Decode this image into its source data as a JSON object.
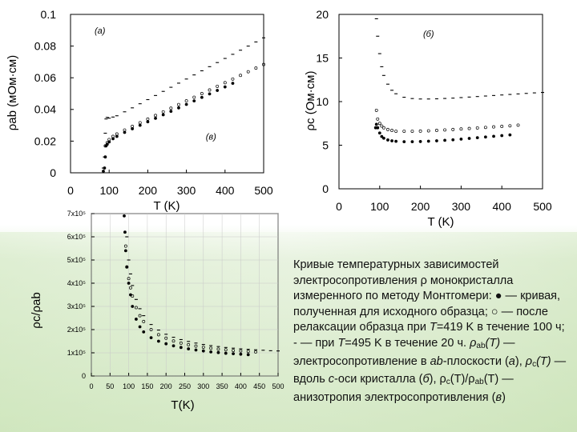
{
  "colors": {
    "background_top": "#ffffff",
    "background_bottom": "#cfe6bd",
    "background_accent": "#e3f0d8",
    "data": "#000000"
  },
  "chart_data": [
    {
      "type": "scatter",
      "panel_label": "(а)",
      "ylabel": "ρab (мОм·см)",
      "xlabel": "T (K)",
      "xlim": [
        0,
        500
      ],
      "ylim": [
        0,
        0.1
      ],
      "xticks": [
        0,
        100,
        200,
        300,
        400,
        500
      ],
      "yticks": [
        0,
        0.02,
        0.04,
        0.06,
        0.08,
        0.1
      ],
      "ytick_labels": [
        "0",
        "0.02",
        "0.04",
        "0.06",
        "0.08",
        "0.1"
      ],
      "annotations": [
        {
          "text": "(в)",
          "x": 350,
          "y": 0.021
        }
      ],
      "series": [
        {
          "marker": "dot",
          "x": [
            85,
            88,
            90,
            92,
            95,
            100,
            110,
            120,
            140,
            160,
            180,
            200,
            220,
            240,
            260,
            280,
            300,
            320,
            340,
            360,
            380,
            400,
            420
          ],
          "y": [
            0.001,
            0.003,
            0.01,
            0.017,
            0.018,
            0.0195,
            0.0215,
            0.023,
            0.0255,
            0.0278,
            0.03,
            0.0322,
            0.0344,
            0.0366,
            0.0388,
            0.041,
            0.0432,
            0.0454,
            0.0476,
            0.0498,
            0.052,
            0.0542,
            0.0565
          ]
        },
        {
          "marker": "circle",
          "x": [
            90,
            95,
            100,
            110,
            120,
            140,
            160,
            180,
            200,
            220,
            240,
            260,
            280,
            300,
            320,
            340,
            360,
            380,
            400,
            420,
            440,
            460,
            480,
            500
          ],
          "y": [
            0.017,
            0.019,
            0.021,
            0.023,
            0.0245,
            0.027,
            0.0293,
            0.0316,
            0.0339,
            0.0362,
            0.0385,
            0.0408,
            0.0431,
            0.0454,
            0.0477,
            0.05,
            0.0523,
            0.0546,
            0.0569,
            0.0592,
            0.0615,
            0.0638,
            0.0661,
            0.0684
          ]
        },
        {
          "marker": "dash",
          "x": [
            85,
            88,
            90,
            92,
            95,
            100,
            110,
            120,
            140,
            160,
            180,
            200,
            220,
            240,
            260,
            280,
            300,
            320,
            340,
            360,
            380,
            400,
            420,
            440,
            460,
            480,
            500
          ],
          "y": [
            0.003,
            0.01,
            0.025,
            0.034,
            0.035,
            0.0345,
            0.0352,
            0.036,
            0.0385,
            0.041,
            0.0436,
            0.0462,
            0.0488,
            0.0514,
            0.054,
            0.0566,
            0.0592,
            0.0618,
            0.0644,
            0.067,
            0.0696,
            0.0722,
            0.0748,
            0.0774,
            0.08,
            0.0826,
            0.0852
          ]
        }
      ]
    },
    {
      "type": "scatter",
      "panel_label": "(б)",
      "ylabel": "ρc (Ом·см)",
      "xlabel": "T (K)",
      "xlim": [
        0,
        500
      ],
      "ylim": [
        0,
        20
      ],
      "xticks": [
        0,
        100,
        200,
        300,
        400,
        500
      ],
      "yticks": [
        0,
        5,
        10,
        15,
        20
      ],
      "series": [
        {
          "marker": "dot",
          "x": [
            90,
            92,
            95,
            100,
            105,
            110,
            120,
            130,
            140,
            160,
            180,
            200,
            220,
            240,
            260,
            280,
            300,
            320,
            340,
            360,
            380,
            400,
            420
          ],
          "y": [
            7.0,
            7.4,
            7.0,
            6.4,
            6.0,
            5.8,
            5.6,
            5.5,
            5.45,
            5.4,
            5.4,
            5.42,
            5.46,
            5.5,
            5.56,
            5.62,
            5.7,
            5.78,
            5.86,
            5.94,
            6.02,
            6.1,
            6.18
          ]
        },
        {
          "marker": "circle",
          "x": [
            92,
            95,
            100,
            105,
            110,
            120,
            130,
            140,
            160,
            180,
            200,
            220,
            240,
            260,
            280,
            300,
            320,
            340,
            360,
            380,
            400,
            420,
            440
          ],
          "y": [
            9.0,
            8.0,
            7.5,
            7.2,
            7.0,
            6.8,
            6.7,
            6.6,
            6.6,
            6.6,
            6.62,
            6.65,
            6.7,
            6.75,
            6.8,
            6.86,
            6.92,
            6.98,
            7.04,
            7.1,
            7.16,
            7.22,
            7.3
          ]
        },
        {
          "marker": "dash",
          "x": [
            92,
            95,
            100,
            105,
            110,
            120,
            130,
            140,
            160,
            180,
            200,
            220,
            240,
            260,
            280,
            300,
            320,
            340,
            360,
            380,
            400,
            420,
            440,
            460,
            480,
            500
          ],
          "y": [
            19.5,
            17.5,
            15.5,
            14.0,
            13.0,
            12.0,
            11.3,
            10.9,
            10.5,
            10.35,
            10.3,
            10.3,
            10.32,
            10.36,
            10.4,
            10.46,
            10.52,
            10.58,
            10.64,
            10.7,
            10.76,
            10.82,
            10.88,
            10.94,
            11.0,
            11.05
          ]
        }
      ]
    },
    {
      "type": "scatter",
      "panel_label": "",
      "ylabel": "ρc/ρab",
      "xlabel": "T(K)",
      "xlim": [
        0,
        500
      ],
      "ylim": [
        0,
        700000
      ],
      "xticks": [
        0,
        50,
        100,
        150,
        200,
        250,
        300,
        350,
        400,
        450,
        500
      ],
      "yticks": [
        0,
        100000,
        200000,
        300000,
        400000,
        500000,
        600000,
        700000
      ],
      "ytick_labels": [
        "0",
        "1x10⁵",
        "2x10⁵",
        "3x10⁵",
        "4x10⁵",
        "5x10⁵",
        "6x10⁵",
        "7x10⁵"
      ],
      "series": [
        {
          "marker": "dot",
          "x": [
            88,
            90,
            92,
            95,
            100,
            105,
            110,
            120,
            130,
            140,
            160,
            180,
            200,
            220,
            240,
            260,
            280,
            300,
            320,
            340,
            360,
            380,
            400,
            420
          ],
          "y": [
            690000,
            620000,
            540000,
            470000,
            400000,
            350000,
            300000,
            245000,
            212000,
            190000,
            165000,
            150000,
            139000,
            130000,
            123000,
            117000,
            112000,
            108000,
            104000,
            101000,
            98000,
            96000,
            94000,
            92000
          ]
        },
        {
          "marker": "circle",
          "x": [
            92,
            95,
            100,
            105,
            110,
            120,
            130,
            140,
            160,
            180,
            200,
            220,
            240,
            260,
            280,
            300,
            320,
            340,
            360,
            380,
            400,
            420,
            440
          ],
          "y": [
            560000,
            470000,
            420000,
            380000,
            345000,
            295000,
            260000,
            235000,
            200000,
            178000,
            163000,
            151000,
            142000,
            135000,
            129000,
            124000,
            120000,
            116000,
            113000,
            110000,
            108000,
            106000,
            104000
          ]
        },
        {
          "marker": "dash",
          "x": [
            95,
            100,
            105,
            110,
            120,
            130,
            140,
            160,
            180,
            200,
            220,
            240,
            260,
            280,
            300,
            320,
            340,
            360,
            380,
            400,
            420,
            440,
            460,
            480,
            500
          ],
          "y": [
            600000,
            500000,
            440000,
            390000,
            330000,
            290000,
            260000,
            222000,
            198000,
            180000,
            167000,
            157000,
            149000,
            142000,
            136000,
            131000,
            127000,
            123000,
            120000,
            117000,
            115000,
            113000,
            111000,
            109000,
            108000
          ]
        }
      ]
    }
  ],
  "caption": {
    "c1": "Кривые температурных зависимостей электросопротивления ρ монокристалла измеренного по методу Монтгомери: ● — кривая, полученная для исходного образца; ○ — после релаксации образца при ",
    "c2": "T",
    "c3": "=419 K в течение 100 ч; - — при ",
    "c4": "T",
    "c5": "=495 K в течение 20 ч. ",
    "c6": "ρ",
    "c7": "ab",
    "c8": "(T)",
    "c9": " — электросопротивление в ",
    "c10": "ab",
    "c11": "-плоскости (",
    "c12": "а",
    "c13": "), ",
    "c14": "ρ",
    "c15": "c",
    "c16": "(T)",
    "c17": " — вдоль ",
    "c18": "c",
    "c19": "-оси кристалла (",
    "c20": "б",
    "c21": "), ρ",
    "c22": "c",
    "c23": "(T)/ρ",
    "c24": "ab",
    "c25": "(T) — анизотропия электросопротивления (",
    "c26": "в",
    "c27": ")"
  }
}
